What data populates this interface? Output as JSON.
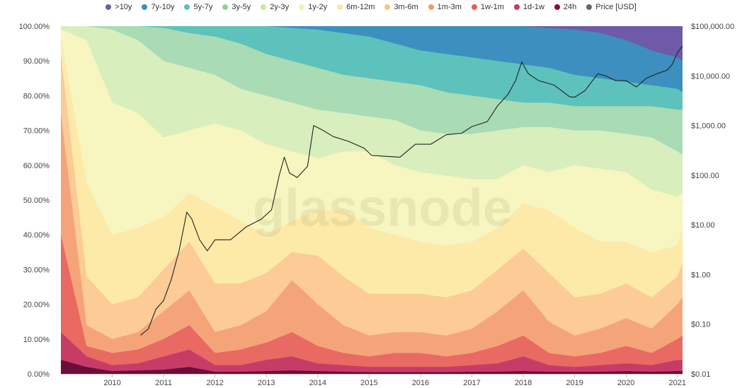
{
  "chart_data": {
    "type": "area",
    "subtype": "stacked-100-percent-with-price-overlay",
    "watermark": "glassnode",
    "x_range": [
      2009.0,
      2021.1
    ],
    "x_ticks": [
      "2010",
      "2011",
      "2012",
      "2013",
      "2014",
      "2015",
      "2016",
      "2017",
      "2018",
      "2019",
      "2020",
      "2021"
    ],
    "x_tick_values": [
      2010,
      2011,
      2012,
      2013,
      2014,
      2015,
      2016,
      2017,
      2018,
      2019,
      2020,
      2021
    ],
    "y_left": {
      "range": [
        0,
        100
      ],
      "ticks": [
        "0.00%",
        "10.00%",
        "20.00%",
        "30.00%",
        "40.00%",
        "50.00%",
        "60.00%",
        "70.00%",
        "80.00%",
        "90.00%",
        "100.00%"
      ],
      "tick_values": [
        0,
        10,
        20,
        30,
        40,
        50,
        60,
        70,
        80,
        90,
        100
      ]
    },
    "y_right": {
      "scale": "log",
      "range": [
        0.01,
        100000
      ],
      "ticks": [
        "$0.01",
        "$0.10",
        "$1.00",
        "$10.00",
        "$100.00",
        "$1,000.00",
        "$10,000.00",
        "$100,000.00"
      ],
      "tick_values": [
        0.01,
        0.1,
        1,
        10,
        100,
        1000,
        10000,
        100000
      ]
    },
    "grid": false,
    "legend_position": "top-center",
    "band_years": [
      2009.0,
      2009.5,
      2010.0,
      2010.5,
      2011.0,
      2011.5,
      2012.0,
      2012.5,
      2013.0,
      2013.5,
      2014.0,
      2014.5,
      2015.0,
      2015.5,
      2016.0,
      2016.5,
      2017.0,
      2017.5,
      2018.0,
      2018.5,
      2019.0,
      2019.5,
      2020.0,
      2020.5,
      2021.0,
      2021.1
    ],
    "bands": [
      {
        "name": "24h",
        "color": "#6b0f3a",
        "upper": [
          4,
          2,
          0.8,
          1,
          1.2,
          2,
          0.6,
          0.6,
          0.8,
          1,
          0.8,
          0.6,
          0.5,
          0.5,
          0.5,
          0.5,
          0.6,
          0.6,
          0.8,
          0.6,
          0.6,
          0.6,
          0.8,
          0.6,
          0.8,
          0.8
        ]
      },
      {
        "name": "1d-1w",
        "color": "#c73c67",
        "upper": [
          12,
          5,
          2.5,
          3,
          5,
          7,
          2.5,
          2.5,
          4,
          5,
          3,
          2.5,
          2,
          2,
          2,
          2,
          2.5,
          3,
          5,
          2.5,
          2,
          2.5,
          3,
          2.5,
          4,
          4
        ]
      },
      {
        "name": "1w-1m",
        "color": "#e86a62",
        "upper": [
          40,
          8,
          6,
          7,
          10,
          14,
          6,
          7,
          9,
          12,
          8,
          6,
          5,
          6,
          6,
          5,
          6,
          8,
          11,
          6,
          5,
          6,
          8,
          6,
          10,
          11
        ]
      },
      {
        "name": "1m-3m",
        "color": "#f5a47a",
        "upper": [
          75,
          14,
          10,
          12,
          18,
          24,
          12,
          14,
          18,
          27,
          20,
          14,
          11,
          12,
          12,
          11,
          13,
          18,
          24,
          15,
          11,
          13,
          16,
          13,
          20,
          22
        ]
      },
      {
        "name": "3m-6m",
        "color": "#fccb96",
        "upper": [
          92,
          28,
          20,
          22,
          30,
          38,
          26,
          26,
          29,
          35,
          34,
          28,
          23,
          23,
          23,
          22,
          24,
          30,
          36,
          29,
          22,
          23,
          26,
          22,
          28,
          32
        ]
      },
      {
        "name": "6m-12m",
        "color": "#fdeaa8",
        "upper": [
          97,
          55,
          40,
          42,
          45,
          52,
          48,
          44,
          40,
          44,
          47,
          47,
          42,
          40,
          38,
          37,
          38,
          42,
          49,
          47,
          42,
          38,
          38,
          35,
          37,
          42
        ]
      },
      {
        "name": "1y-2y",
        "color": "#f7f6c0",
        "upper": [
          99,
          96,
          78,
          75,
          68,
          70,
          72,
          70,
          66,
          64,
          62,
          64,
          64,
          60,
          58,
          57,
          56,
          56,
          60,
          58,
          60,
          59,
          58,
          53,
          51,
          52
        ]
      },
      {
        "name": "2y-3y",
        "color": "#d8eebd",
        "upper": [
          100,
          100,
          99,
          96,
          90,
          88,
          86,
          82,
          80,
          78,
          76,
          75,
          74,
          73,
          70,
          69,
          69,
          70,
          71,
          71,
          70,
          70,
          69,
          68,
          64,
          63
        ]
      },
      {
        "name": "3y-5y",
        "color": "#a9dbb4",
        "upper": [
          100,
          100,
          100,
          100,
          99.5,
          98,
          97,
          95,
          92,
          90,
          88,
          86,
          85,
          84,
          83,
          81,
          80,
          79,
          78,
          78,
          77,
          77,
          77,
          77,
          76,
          76
        ]
      },
      {
        "name": "5y-7y",
        "color": "#5cc2bb",
        "upper": [
          100,
          100,
          100,
          100,
          100,
          100,
          100,
          100,
          100,
          99.5,
          99,
          98,
          97,
          95,
          93,
          92,
          91,
          90,
          89,
          88,
          86,
          85,
          84,
          83,
          82,
          81
        ]
      },
      {
        "name": "7y-10y",
        "color": "#3c8fbf",
        "upper": [
          100,
          100,
          100,
          100,
          100,
          100,
          100,
          100,
          100,
          100,
          100,
          100,
          100,
          100,
          100,
          100,
          100,
          100,
          100,
          99.5,
          99,
          98,
          96,
          93,
          91,
          90
        ]
      },
      {
        "name": ">10y",
        "color": "#6e5aa8",
        "upper": [
          100,
          100,
          100,
          100,
          100,
          100,
          100,
          100,
          100,
          100,
          100,
          100,
          100,
          100,
          100,
          100,
          100,
          100,
          100,
          100,
          100,
          100,
          100,
          100,
          100,
          100
        ]
      }
    ],
    "price_series": {
      "name": "Price [USD]",
      "color": "#222222",
      "x": [
        2010.55,
        2010.7,
        2010.85,
        2011.0,
        2011.15,
        2011.3,
        2011.45,
        2011.55,
        2011.7,
        2011.85,
        2012.0,
        2012.3,
        2012.6,
        2012.9,
        2013.1,
        2013.25,
        2013.35,
        2013.45,
        2013.6,
        2013.8,
        2013.92,
        2014.1,
        2014.3,
        2014.6,
        2014.9,
        2015.05,
        2015.3,
        2015.6,
        2015.9,
        2016.2,
        2016.5,
        2016.8,
        2017.0,
        2017.3,
        2017.5,
        2017.7,
        2017.85,
        2017.97,
        2018.1,
        2018.3,
        2018.6,
        2018.9,
        2019.0,
        2019.2,
        2019.45,
        2019.6,
        2019.8,
        2020.0,
        2020.2,
        2020.4,
        2020.6,
        2020.8,
        2020.9,
        2021.0,
        2021.1
      ],
      "y": [
        0.06,
        0.08,
        0.2,
        0.3,
        0.8,
        3,
        18,
        13,
        5,
        3,
        5,
        5,
        9,
        13,
        20,
        100,
        230,
        110,
        90,
        150,
        1000,
        800,
        600,
        480,
        350,
        250,
        240,
        230,
        420,
        420,
        650,
        700,
        950,
        1200,
        2500,
        4200,
        8000,
        19000,
        11000,
        8000,
        6500,
        3800,
        3700,
        5000,
        11000,
        10000,
        8000,
        8000,
        6000,
        9000,
        11000,
        13000,
        17000,
        29000,
        40000
      ]
    },
    "legend": [
      {
        "name": ">10y",
        "color": "#6e5aa8"
      },
      {
        "name": "7y-10y",
        "color": "#3c8fbf"
      },
      {
        "name": "5y-7y",
        "color": "#5cc2bb"
      },
      {
        "name": "3y-5y",
        "color": "#8fd19e"
      },
      {
        "name": "2y-3y",
        "color": "#c9e89f"
      },
      {
        "name": "1y-2y",
        "color": "#f3f3b0"
      },
      {
        "name": "6m-12m",
        "color": "#fbe7a0"
      },
      {
        "name": "3m-6m",
        "color": "#f9c37f"
      },
      {
        "name": "1m-3m",
        "color": "#f59a63"
      },
      {
        "name": "1w-1m",
        "color": "#e8604e"
      },
      {
        "name": "1d-1w",
        "color": "#c83a5a"
      },
      {
        "name": "24h",
        "color": "#8b0a3d"
      },
      {
        "name": "Price [USD]",
        "color": "#666666"
      }
    ]
  }
}
